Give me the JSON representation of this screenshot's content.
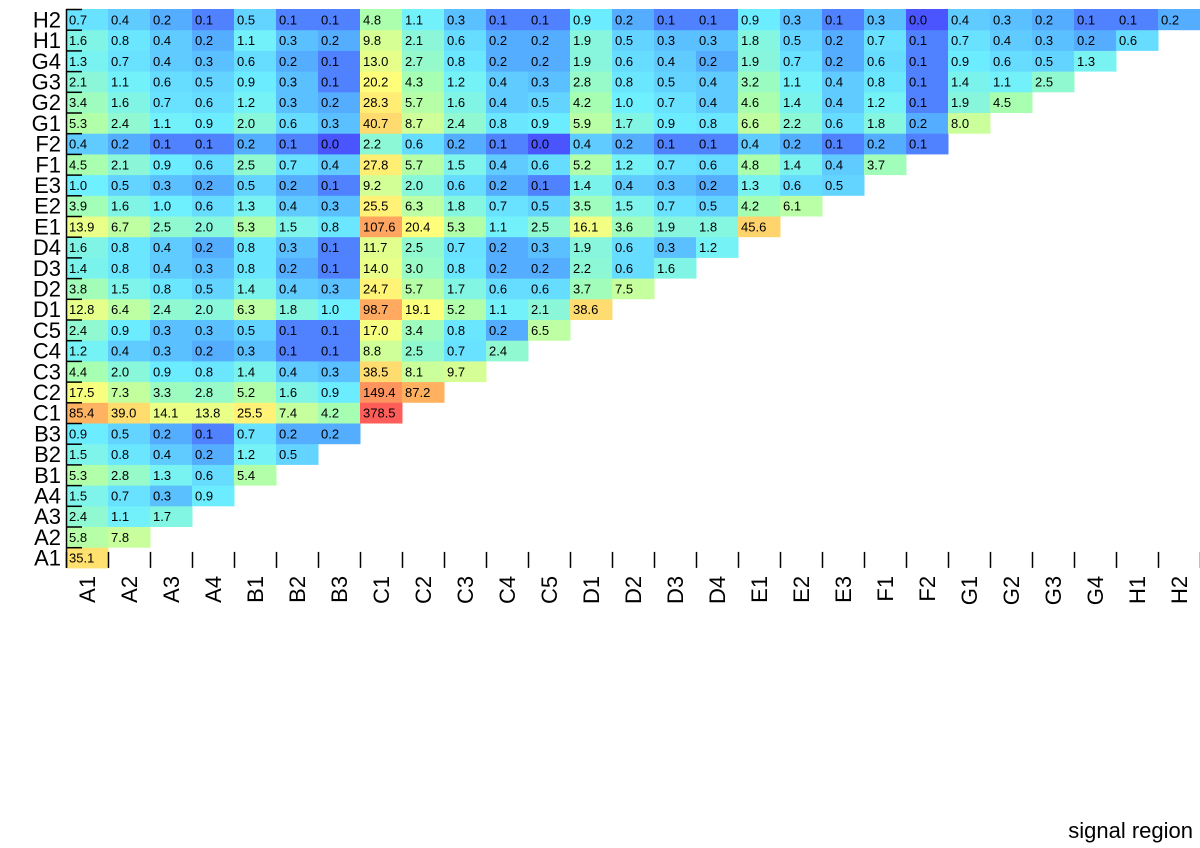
{
  "chart_data": {
    "type": "heatmap",
    "title": "",
    "xlabel": "signal region",
    "ylabel": "",
    "categories": [
      "A1",
      "A2",
      "A3",
      "A4",
      "B1",
      "B2",
      "B3",
      "C1",
      "C2",
      "C3",
      "C4",
      "C5",
      "D1",
      "D2",
      "D3",
      "D4",
      "E1",
      "E2",
      "E3",
      "F1",
      "F2",
      "G1",
      "G2",
      "G3",
      "G4",
      "H1",
      "H2"
    ],
    "rows": [
      {
        "label": "A1",
        "values": [
          35.1
        ]
      },
      {
        "label": "A2",
        "values": [
          5.8,
          7.8
        ]
      },
      {
        "label": "A3",
        "values": [
          2.4,
          1.1,
          1.7
        ]
      },
      {
        "label": "A4",
        "values": [
          1.5,
          0.7,
          0.3,
          0.9
        ]
      },
      {
        "label": "B1",
        "values": [
          5.3,
          2.8,
          1.3,
          0.6,
          5.4
        ]
      },
      {
        "label": "B2",
        "values": [
          1.5,
          0.8,
          0.4,
          0.2,
          1.2,
          0.5
        ]
      },
      {
        "label": "B3",
        "values": [
          0.9,
          0.5,
          0.2,
          0.1,
          0.7,
          0.2,
          0.2
        ]
      },
      {
        "label": "C1",
        "values": [
          85.4,
          39.0,
          14.1,
          13.8,
          25.5,
          7.4,
          4.2,
          378.5
        ]
      },
      {
        "label": "C2",
        "values": [
          17.5,
          7.3,
          3.3,
          2.8,
          5.2,
          1.6,
          0.9,
          149.4,
          87.2
        ]
      },
      {
        "label": "C3",
        "values": [
          4.4,
          2.0,
          0.9,
          0.8,
          1.4,
          0.4,
          0.3,
          38.5,
          8.1,
          9.7
        ]
      },
      {
        "label": "C4",
        "values": [
          1.2,
          0.4,
          0.3,
          0.2,
          0.3,
          0.1,
          0.1,
          8.8,
          2.5,
          0.7,
          2.4
        ]
      },
      {
        "label": "C5",
        "values": [
          2.4,
          0.9,
          0.3,
          0.3,
          0.5,
          0.1,
          0.1,
          17.0,
          3.4,
          0.8,
          0.2,
          6.5
        ]
      },
      {
        "label": "D1",
        "values": [
          12.8,
          6.4,
          2.4,
          2.0,
          6.3,
          1.8,
          1.0,
          98.7,
          19.1,
          5.2,
          1.1,
          2.1,
          38.6
        ]
      },
      {
        "label": "D2",
        "values": [
          3.8,
          1.5,
          0.8,
          0.5,
          1.4,
          0.4,
          0.3,
          24.7,
          5.7,
          1.7,
          0.6,
          0.6,
          3.7,
          7.5
        ]
      },
      {
        "label": "D3",
        "values": [
          1.4,
          0.8,
          0.4,
          0.3,
          0.8,
          0.2,
          0.1,
          14.0,
          3.0,
          0.8,
          0.2,
          0.2,
          2.2,
          0.6,
          1.6
        ]
      },
      {
        "label": "D4",
        "values": [
          1.6,
          0.8,
          0.4,
          0.2,
          0.8,
          0.3,
          0.1,
          11.7,
          2.5,
          0.7,
          0.2,
          0.3,
          1.9,
          0.6,
          0.3,
          1.2
        ]
      },
      {
        "label": "E1",
        "values": [
          13.9,
          6.7,
          2.5,
          2.0,
          5.3,
          1.5,
          0.8,
          107.6,
          20.4,
          5.3,
          1.1,
          2.5,
          16.1,
          3.6,
          1.9,
          1.8,
          45.6
        ]
      },
      {
        "label": "E2",
        "values": [
          3.9,
          1.6,
          1.0,
          0.6,
          1.3,
          0.4,
          0.3,
          25.5,
          6.3,
          1.8,
          0.7,
          0.5,
          3.5,
          1.5,
          0.7,
          0.5,
          4.2,
          6.1
        ]
      },
      {
        "label": "E3",
        "values": [
          1.0,
          0.5,
          0.3,
          0.2,
          0.5,
          0.2,
          0.1,
          9.2,
          2.0,
          0.6,
          0.2,
          0.1,
          1.4,
          0.4,
          0.3,
          0.2,
          1.3,
          0.6,
          0.5
        ]
      },
      {
        "label": "F1",
        "values": [
          4.5,
          2.1,
          0.9,
          0.6,
          2.5,
          0.7,
          0.4,
          27.8,
          5.7,
          1.5,
          0.4,
          0.6,
          5.2,
          1.2,
          0.7,
          0.6,
          4.8,
          1.4,
          0.4,
          3.7
        ]
      },
      {
        "label": "F2",
        "values": [
          0.4,
          0.2,
          0.1,
          0.1,
          0.2,
          0.1,
          0.0,
          2.2,
          0.6,
          0.2,
          0.1,
          0.0,
          0.4,
          0.2,
          0.1,
          0.1,
          0.4,
          0.2,
          0.1,
          0.2,
          0.1
        ]
      },
      {
        "label": "G1",
        "values": [
          5.3,
          2.4,
          1.1,
          0.9,
          2.0,
          0.6,
          0.3,
          40.7,
          8.7,
          2.4,
          0.8,
          0.9,
          5.9,
          1.7,
          0.9,
          0.8,
          6.6,
          2.2,
          0.6,
          1.8,
          0.2,
          8.0
        ]
      },
      {
        "label": "G2",
        "values": [
          3.4,
          1.6,
          0.7,
          0.6,
          1.2,
          0.3,
          0.2,
          28.3,
          5.7,
          1.6,
          0.4,
          0.5,
          4.2,
          1.0,
          0.7,
          0.4,
          4.6,
          1.4,
          0.4,
          1.2,
          0.1,
          1.9,
          4.5
        ]
      },
      {
        "label": "G3",
        "values": [
          2.1,
          1.1,
          0.6,
          0.5,
          0.9,
          0.3,
          0.1,
          20.2,
          4.3,
          1.2,
          0.4,
          0.3,
          2.8,
          0.8,
          0.5,
          0.4,
          3.2,
          1.1,
          0.4,
          0.8,
          0.1,
          1.4,
          1.1,
          2.5
        ]
      },
      {
        "label": "G4",
        "values": [
          1.3,
          0.7,
          0.4,
          0.3,
          0.6,
          0.2,
          0.1,
          13.0,
          2.7,
          0.8,
          0.2,
          0.2,
          1.9,
          0.6,
          0.4,
          0.2,
          1.9,
          0.7,
          0.2,
          0.6,
          0.1,
          0.9,
          0.6,
          0.5,
          1.3
        ]
      },
      {
        "label": "H1",
        "values": [
          1.6,
          0.8,
          0.4,
          0.2,
          1.1,
          0.3,
          0.2,
          9.8,
          2.1,
          0.6,
          0.2,
          0.2,
          1.9,
          0.5,
          0.3,
          0.3,
          1.8,
          0.5,
          0.2,
          0.7,
          0.1,
          0.7,
          0.4,
          0.3,
          0.2,
          0.6
        ]
      },
      {
        "label": "H2",
        "values": [
          0.7,
          0.4,
          0.2,
          0.1,
          0.5,
          0.1,
          0.1,
          4.8,
          1.1,
          0.3,
          0.1,
          0.1,
          0.9,
          0.2,
          0.1,
          0.1,
          0.9,
          0.3,
          0.1,
          0.3,
          0.0,
          0.4,
          0.3,
          0.2,
          0.1,
          0.1,
          0.2
        ]
      }
    ],
    "color_scale": "log",
    "colors": [
      "#4a55ff",
      "#56b4ff",
      "#6ef0ff",
      "#a8ffb0",
      "#ffff7a",
      "#ffb060",
      "#ff5a5a"
    ]
  }
}
